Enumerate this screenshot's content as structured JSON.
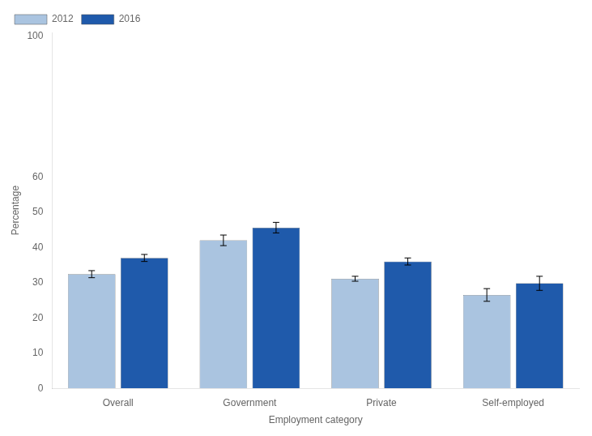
{
  "chart_data": {
    "type": "bar",
    "categories": [
      "Overall",
      "Government",
      "Private",
      "Self-employed"
    ],
    "series": [
      {
        "name": "2012",
        "color": "#aac4e0",
        "values": [
          32.4,
          42.0,
          31.1,
          26.5
        ],
        "errors": [
          1.0,
          1.5,
          0.7,
          1.8
        ]
      },
      {
        "name": "2016",
        "color": "#1f5aab",
        "values": [
          37.0,
          45.6,
          36.0,
          29.8
        ],
        "errors": [
          1.0,
          1.5,
          1.0,
          2.0
        ]
      }
    ],
    "xlabel": "Employment category",
    "ylabel": "Percentage",
    "ylim": [
      0,
      101
    ],
    "yticks": [
      0,
      10,
      20,
      30,
      40,
      50,
      60,
      100
    ],
    "grid": false,
    "legend": "upper left"
  }
}
